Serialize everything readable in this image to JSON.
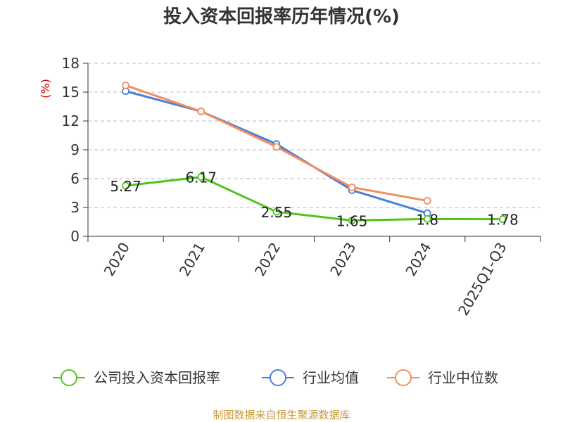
{
  "chart_data": {
    "type": "line",
    "title": "投入资本回报率历年情况(%)",
    "ylabel": "(%)",
    "xlabel": "",
    "categories": [
      "2020",
      "2021",
      "2022",
      "2023",
      "2024",
      "2025Q1-Q3"
    ],
    "ylim": [
      0,
      18
    ],
    "yticks": [
      0,
      3,
      6,
      9,
      12,
      15,
      18
    ],
    "grid": true,
    "legend_position": "bottom",
    "series": [
      {
        "name": "公司投入资本回报率",
        "color": "#52c41a",
        "values": [
          5.27,
          6.17,
          2.55,
          1.65,
          1.8,
          1.78
        ],
        "labels": [
          "5.27",
          "6.17",
          "2.55",
          "1.65",
          "1.8",
          "1.78"
        ]
      },
      {
        "name": "行业均值",
        "color": "#4a7fd6",
        "values": [
          15.1,
          13.0,
          9.6,
          4.8,
          2.4,
          null
        ]
      },
      {
        "name": "行业中位数",
        "color": "#f58d5c",
        "values": [
          15.7,
          13.0,
          9.3,
          5.1,
          3.7,
          null
        ]
      }
    ]
  },
  "footer": {
    "source": "制图数据来自恒生聚源数据库"
  }
}
